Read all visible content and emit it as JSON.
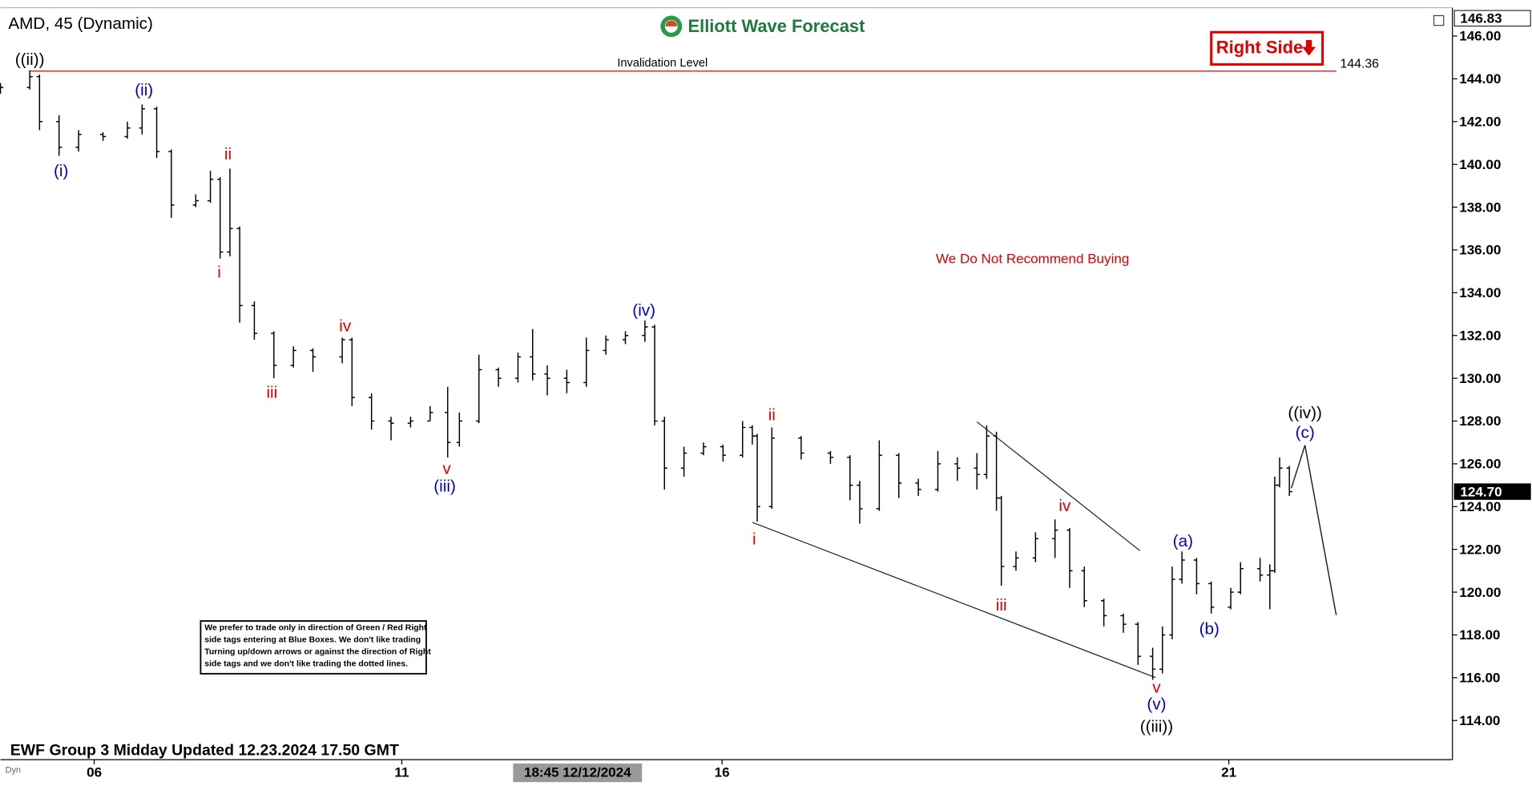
{
  "chart_data": {
    "type": "ohlc",
    "title": "AMD, 45 (Dynamic)",
    "brand": "Elliott Wave Forecast",
    "footer": "EWF Group 3 Midday Updated 12.23.2024 17.50 GMT",
    "cursor_time": "18:45 12/12/2024",
    "mode_tag": "Dyn",
    "side_tag": "Right Side",
    "warning": "We Do Not Recommend Buying",
    "invalidation": {
      "label": "Invalidation Level",
      "value": 144.36,
      "color": "#e00000"
    },
    "disclaimer": [
      "We prefer to trade only in direction of Green / Red Right",
      "side tags entering at Blue Boxes. We don't like trading",
      "Turning up/down arrows or against the direction of Right",
      "side tags and we don't like trading the dotted lines."
    ],
    "price_labels": [
      {
        "value": 146.83
      },
      {
        "value": 124.7,
        "label": "124.70"
      }
    ],
    "color": "#000000",
    "x": [
      0,
      30,
      40,
      60,
      80,
      105,
      130,
      145,
      160,
      175,
      200,
      215,
      225,
      235,
      245,
      260,
      280,
      300,
      320,
      350,
      360,
      380,
      400,
      420,
      440,
      458,
      470,
      490,
      510,
      530,
      545,
      560,
      580,
      600,
      620,
      640,
      660,
      670,
      680,
      700,
      720,
      740,
      760,
      770,
      775,
      790,
      820,
      850,
      870,
      880,
      900,
      920,
      940,
      960,
      980,
      1000,
      1010,
      1020,
      1025,
      1040,
      1060,
      1080,
      1095,
      1110,
      1130,
      1150,
      1165,
      1180,
      1190,
      1200,
      1210,
      1225,
      1240,
      1260,
      1270,
      1290,
      1300,
      1305,
      1310,
      1320
    ],
    "open": [
      143.4,
      143.6,
      144.1,
      142,
      140.8,
      141.4,
      141.3,
      141.7,
      142.6,
      140.6,
      138.1,
      138.3,
      139.3,
      135.9,
      137,
      133.4,
      132.1,
      130.6,
      131.3,
      131,
      131.8,
      129.1,
      128,
      127.9,
      128,
      128.4,
      127,
      128,
      130.4,
      130,
      131,
      130.2,
      130,
      129.8,
      131.3,
      131.8,
      132,
      132.4,
      128,
      125.8,
      126.5,
      126.8,
      126.4,
      127.7,
      127.3,
      124,
      127.2,
      126.5,
      126.3,
      125,
      123.9,
      126.4,
      125.1,
      124.8,
      126,
      125.8,
      125.5,
      127.3,
      124.4,
      121.2,
      121.6,
      122.5,
      122.9,
      121,
      119.6,
      118.9,
      118.5,
      117,
      116.4,
      118,
      120.6,
      121.5,
      120.4,
      119.3,
      120,
      121.1,
      120.8,
      121,
      125,
      125.8
    ],
    "high": [
      143.8,
      144.4,
      144.2,
      142.3,
      141.6,
      141.5,
      142,
      142.8,
      142.7,
      140.7,
      138.6,
      139.7,
      139.4,
      139.8,
      137.1,
      133.6,
      132.2,
      131.5,
      131.4,
      131.9,
      131.9,
      129.3,
      128.2,
      128.2,
      128.7,
      129.6,
      128.4,
      131.1,
      130.5,
      131.2,
      132.3,
      130.6,
      130.4,
      131.9,
      132,
      132.2,
      132.7,
      132.5,
      128.2,
      126.8,
      127,
      126.9,
      128,
      127.8,
      127.4,
      127.7,
      127.3,
      126.6,
      126.4,
      125.2,
      127.1,
      126.5,
      125.3,
      126.6,
      126.3,
      126.5,
      127.8,
      127.5,
      124.5,
      121.9,
      122.8,
      123.4,
      123,
      121.2,
      119.7,
      119,
      118.6,
      117.4,
      118.4,
      121.2,
      121.9,
      121.6,
      120.5,
      120.2,
      121.4,
      121.6,
      121.3,
      125.4,
      126.3,
      125.9
    ],
    "low": [
      143.3,
      143.5,
      141.6,
      140.4,
      140.6,
      141.1,
      141.2,
      141.4,
      140.3,
      137.5,
      138,
      138.2,
      135.6,
      135.7,
      132.6,
      131.8,
      130,
      130.5,
      130.3,
      130.7,
      128.7,
      127.6,
      127.1,
      127.7,
      128,
      126.3,
      126.8,
      127.9,
      129.6,
      129.8,
      129.9,
      129.2,
      129.3,
      129.6,
      131.1,
      131.6,
      131.7,
      127.8,
      124.8,
      125.4,
      126.4,
      126.1,
      126.3,
      126.9,
      123.3,
      123.9,
      126.2,
      126,
      124.3,
      123.2,
      123.8,
      124.4,
      124.5,
      124.7,
      125.2,
      124.8,
      125.3,
      123.8,
      120.3,
      121,
      121.4,
      121.6,
      120.2,
      119.3,
      118.4,
      118.1,
      116.6,
      115.9,
      116.2,
      117.8,
      120.4,
      119.9,
      119,
      119.2,
      119.9,
      120.5,
      119.2,
      120.9,
      124.9,
      124.5
    ],
    "close": [
      143.6,
      144.1,
      142,
      140.8,
      141.4,
      141.3,
      141.7,
      142.6,
      140.6,
      138.1,
      138.3,
      139.3,
      135.9,
      137,
      133.4,
      132.1,
      130.6,
      131.3,
      131,
      131.8,
      129.1,
      128,
      127.9,
      128,
      128.4,
      127,
      128,
      130.4,
      130,
      131,
      130.2,
      130,
      129.8,
      131.3,
      131.8,
      132,
      132.4,
      128,
      125.8,
      126.5,
      126.8,
      126.4,
      127.7,
      127.3,
      124,
      127.2,
      126.5,
      126.3,
      125,
      123.9,
      126.4,
      125.1,
      124.8,
      126,
      125.8,
      125.5,
      127.3,
      124.4,
      121.2,
      121.6,
      122.5,
      122.9,
      121,
      119.6,
      118.9,
      118.5,
      117,
      116.4,
      118,
      120.6,
      121.5,
      120.4,
      119.3,
      120,
      121.1,
      120.8,
      121,
      125,
      125.8,
      124.7
    ],
    "xlim": [
      0,
      1487
    ],
    "xticks": [
      {
        "value": 96,
        "label": "06"
      },
      {
        "value": 411,
        "label": "11"
      },
      {
        "value": 739,
        "label": "16"
      },
      {
        "value": 1258,
        "label": "21"
      }
    ],
    "ylim": [
      112.17,
      147.32
    ],
    "yticks": [
      {
        "value": 114,
        "label": "114.00"
      },
      {
        "value": 116,
        "label": "116.00"
      },
      {
        "value": 118,
        "label": "118.00"
      },
      {
        "value": 120,
        "label": "120.00"
      },
      {
        "value": 122,
        "label": "122.00"
      },
      {
        "value": 124,
        "label": "124.00"
      },
      {
        "value": 126,
        "label": "126.00"
      },
      {
        "value": 128,
        "label": "128.00"
      },
      {
        "value": 130,
        "label": "130.00"
      },
      {
        "value": 132,
        "label": "132.00"
      },
      {
        "value": 134,
        "label": "134.00"
      },
      {
        "value": 136,
        "label": "136.00"
      },
      {
        "value": 138,
        "label": "138.00"
      },
      {
        "value": 140,
        "label": "140.00"
      },
      {
        "value": 142,
        "label": "142.00"
      },
      {
        "value": 144,
        "label": "144.00"
      },
      {
        "value": 146,
        "label": "146.00"
      }
    ],
    "grid": false,
    "wave_labels": [
      {
        "text": "((ii))",
        "color": "#000000"
      },
      {
        "text": "(i)",
        "color": "#0000cc"
      },
      {
        "text": "(ii)",
        "color": "#0000cc"
      },
      {
        "text": "ii",
        "color": "#e00000"
      },
      {
        "text": "i",
        "color": "#e00000"
      },
      {
        "text": "iii",
        "color": "#e00000"
      },
      {
        "text": "iv",
        "color": "#e00000"
      },
      {
        "text": "v",
        "color": "#e00000"
      },
      {
        "text": "(iii)",
        "color": "#0000cc"
      },
      {
        "text": "(iv)",
        "color": "#0000cc"
      },
      {
        "text": "i",
        "color": "#e00000"
      },
      {
        "text": "ii",
        "color": "#e00000"
      },
      {
        "text": "iii",
        "color": "#e00000"
      },
      {
        "text": "iv",
        "color": "#e00000"
      },
      {
        "text": "v",
        "color": "#e00000"
      },
      {
        "text": "(v)",
        "color": "#0000cc"
      },
      {
        "text": "((iii))",
        "color": "#000000"
      },
      {
        "text": "(a)",
        "color": "#0000cc"
      },
      {
        "text": "(b)",
        "color": "#0000cc"
      },
      {
        "text": "(c)",
        "color": "#0000cc"
      },
      {
        "text": "((iv))",
        "color": "#000000"
      }
    ]
  }
}
